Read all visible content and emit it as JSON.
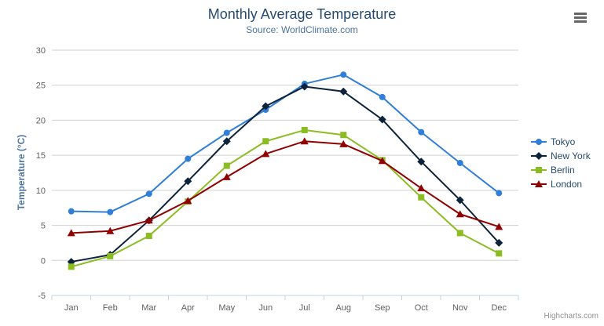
{
  "header": {
    "title": "Monthly Average Temperature",
    "subtitle": "Source: WorldClimate.com"
  },
  "chart_data": {
    "type": "line",
    "categories": [
      "Jan",
      "Feb",
      "Mar",
      "Apr",
      "May",
      "Jun",
      "Jul",
      "Aug",
      "Sep",
      "Oct",
      "Nov",
      "Dec"
    ],
    "series": [
      {
        "name": "Tokyo",
        "color": "#2f7ed8",
        "marker": "circle",
        "values": [
          7.0,
          6.9,
          9.5,
          14.5,
          18.2,
          21.5,
          25.2,
          26.5,
          23.3,
          18.3,
          13.9,
          9.6
        ]
      },
      {
        "name": "New York",
        "color": "#0d233a",
        "marker": "diamond",
        "values": [
          -0.2,
          0.8,
          5.7,
          11.3,
          17.0,
          22.0,
          24.8,
          24.1,
          20.1,
          14.1,
          8.6,
          2.5
        ]
      },
      {
        "name": "Berlin",
        "color": "#8bbc21",
        "marker": "square",
        "values": [
          -0.9,
          0.6,
          3.5,
          8.4,
          13.5,
          17.0,
          18.6,
          17.9,
          14.3,
          9.0,
          3.9,
          1.0
        ]
      },
      {
        "name": "London",
        "color": "#910000",
        "marker": "triangle",
        "values": [
          3.9,
          4.2,
          5.7,
          8.5,
          11.9,
          15.2,
          17.0,
          16.6,
          14.2,
          10.3,
          6.6,
          4.8
        ]
      }
    ],
    "title": "Monthly Average Temperature",
    "subtitle": "Source: WorldClimate.com",
    "xlabel": "",
    "ylabel": "Temperature (°C)",
    "ylim": [
      -5,
      30
    ],
    "ytick_step": 5,
    "grid": true,
    "legend_position": "right",
    "grid_color": "#d0d0d0",
    "axis_line_color": "#c0d0e0",
    "tick_label_color": "#606060"
  },
  "credits": {
    "label": "Highcharts.com"
  },
  "menu": {
    "icon": "hamburger-icon"
  }
}
